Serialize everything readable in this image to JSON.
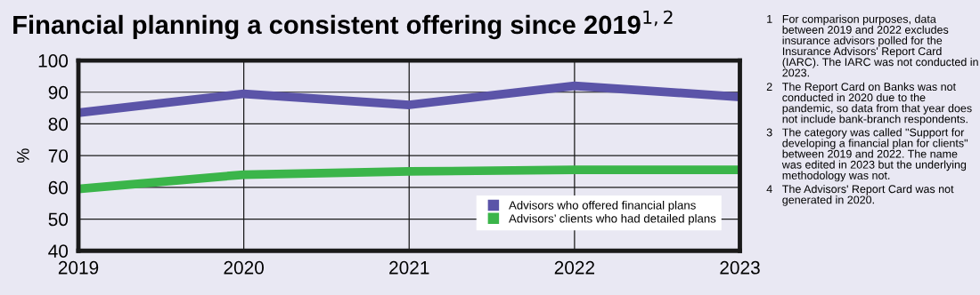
{
  "chart_data": {
    "type": "line",
    "title": "Financial planning a consistent offering since 2019$^{1,2}$",
    "ylabel": "%",
    "x": [
      2019,
      2020,
      2021,
      2022,
      2023
    ],
    "series": [
      {
        "name": "Advisors who offered financial plans",
        "color": "#5b54a8",
        "values": [
          83.5,
          89.5,
          86,
          92,
          88.5
        ]
      },
      {
        "name": "Advisors’ clients who had detailed plans",
        "color": "#3bb54a",
        "values": [
          59.5,
          64,
          65,
          65.5,
          65.5
        ]
      }
    ],
    "xlim": [
      2019,
      2023
    ],
    "xticks": [
      2019,
      2020,
      2021,
      2022,
      2023
    ],
    "ylim": [
      40,
      100
    ],
    "yticks": [
      40,
      50,
      60,
      70,
      80,
      90,
      100
    ],
    "grid": true,
    "legend": "bottom right",
    "marker": "none",
    "line_style": "solid",
    "annotations": [
      "1 For comparison purposes, data between 2019 and 2022 excludes insurance advisors polled for the Insurance Advisors' Report Card (IARC). The IARC was not conducted in 2023.",
      "2 The Report Card on Banks was not conducted in 2020 due to the pandemic, so data from that year does not include bank-branch respondents.",
      "3 The category was called \"Support for developing a financial plan for clients\" between 2019 and 2022. The name was edited in 2023 but the underlying methodology was not.",
      "4 The Advisors' Report Card was not generated in 2020."
    ]
  }
}
